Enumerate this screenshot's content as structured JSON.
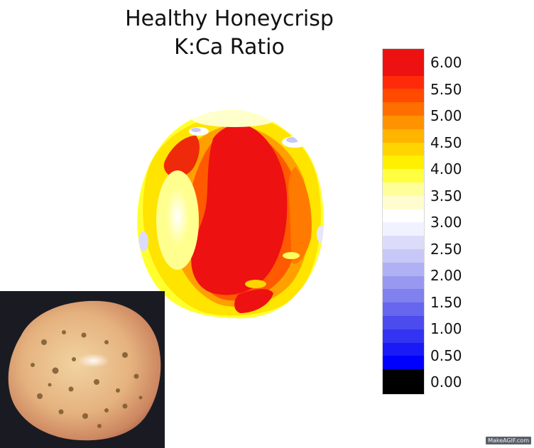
{
  "chart_data": {
    "type": "heatmap",
    "title_line1": "Healthy Honeycrisp",
    "title_line2": "K:Ca Ratio",
    "colorbar": {
      "min": 0.0,
      "max": 6.0,
      "ticks": [
        "6.00",
        "5.50",
        "5.00",
        "4.50",
        "4.00",
        "3.50",
        "3.00",
        "2.50",
        "2.00",
        "1.50",
        "1.00",
        "0.50",
        "0.00"
      ],
      "tick_values": [
        6.0,
        5.5,
        5.0,
        4.5,
        4.0,
        3.5,
        3.0,
        2.5,
        2.0,
        1.5,
        1.0,
        0.5,
        0.0
      ],
      "colors_high_to_low": [
        "#ee1111",
        "#ee1111",
        "#ff2a0a",
        "#ff4a00",
        "#ff6e00",
        "#ff9200",
        "#ffb400",
        "#ffd400",
        "#fff000",
        "#ffff40",
        "#ffff9a",
        "#fffdd0",
        "#ffffff",
        "#f1f2ff",
        "#dcdcfa",
        "#c8c8f8",
        "#b0b0f4",
        "#9898f0",
        "#8080ee",
        "#6666ee",
        "#4c4cee",
        "#3333f2",
        "#1a1af6",
        "#0000ff",
        "#000000"
      ]
    }
  },
  "watermark": "MakeAGIF.com"
}
